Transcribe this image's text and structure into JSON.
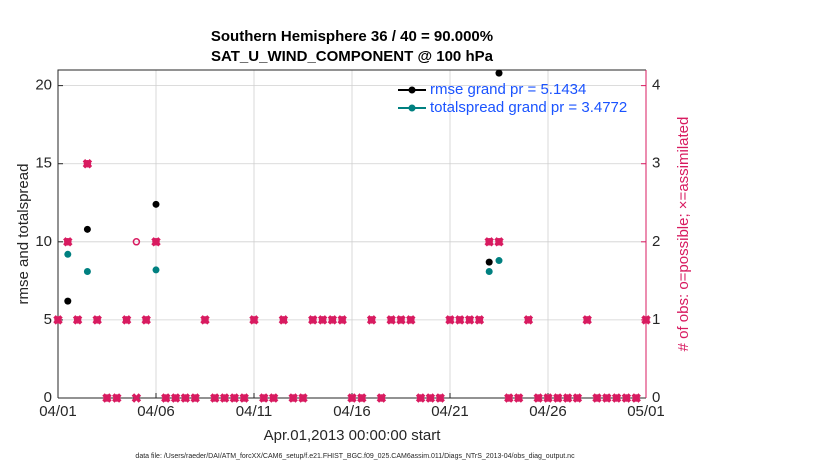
{
  "chart_data": {
    "type": "scatter",
    "title": [
      "Southern Hemisphere 36 / 40 = 90.000%",
      "SAT_U_WIND_COMPONENT @ 100 hPa"
    ],
    "xlabel": "Apr.01,2013 00:00:00 start",
    "ylabel": "rmse and totalspread",
    "y2label": "# of obs: o=possible; ×=assimilated",
    "footnote": "data file: /Users/raeder/DAI/ATM_forcXX/CAM6_setup/f.e21.FHIST_BGC.f09_025.CAM6assim.011/Diags_NTrS_2013-04/obs_diag_output.nc",
    "x": [
      0,
      0.5,
      1,
      1.5,
      2,
      2.5,
      3,
      3.5,
      4,
      4.5,
      5,
      5.5,
      6,
      6.5,
      7,
      7.5,
      8,
      8.5,
      9,
      9.5,
      10,
      10.5,
      11,
      11.5,
      12,
      12.5,
      13,
      13.5,
      14,
      14.5,
      15,
      15.5,
      16,
      16.5,
      17,
      17.5,
      18,
      18.5,
      19,
      19.5,
      20,
      20.5,
      21,
      21.5,
      22,
      22.5,
      23,
      23.5,
      24,
      24.5,
      25,
      25.5,
      26,
      26.5,
      27,
      27.5,
      28,
      28.5,
      29,
      29.5,
      30
    ],
    "xlim": [
      0,
      30
    ],
    "xticks": [
      {
        "value": 0,
        "label": "04/01"
      },
      {
        "value": 5,
        "label": "04/06"
      },
      {
        "value": 10,
        "label": "04/11"
      },
      {
        "value": 15,
        "label": "04/16"
      },
      {
        "value": 20,
        "label": "04/21"
      },
      {
        "value": 25,
        "label": "04/26"
      },
      {
        "value": 30,
        "label": "05/01"
      }
    ],
    "ylim": [
      0,
      21
    ],
    "yticks": [
      0,
      5,
      10,
      15,
      20
    ],
    "y2lim": [
      0,
      4.2
    ],
    "y2ticks": [
      0,
      1,
      2,
      3,
      4
    ],
    "grid": true,
    "legend": "upper right",
    "series": [
      {
        "name": "rmse grand pr = 5.1434",
        "color": "#000000",
        "marker": "dot",
        "values": [
          null,
          6.2,
          null,
          10.8,
          null,
          null,
          null,
          null,
          null,
          null,
          12.4,
          null,
          null,
          null,
          null,
          null,
          null,
          null,
          null,
          null,
          null,
          null,
          null,
          null,
          null,
          null,
          null,
          null,
          null,
          null,
          null,
          null,
          null,
          null,
          null,
          null,
          null,
          null,
          null,
          null,
          null,
          null,
          null,
          null,
          8.7,
          20.8,
          null,
          null,
          null,
          null,
          null,
          null,
          null,
          null,
          null,
          null,
          null,
          null,
          null,
          null,
          null
        ]
      },
      {
        "name": "totalspread grand pr = 3.4772",
        "color": "#008080",
        "marker": "dot",
        "values": [
          null,
          9.2,
          null,
          8.1,
          null,
          null,
          null,
          null,
          null,
          null,
          8.2,
          null,
          null,
          null,
          null,
          null,
          null,
          null,
          null,
          null,
          null,
          null,
          null,
          null,
          null,
          null,
          null,
          null,
          null,
          null,
          null,
          null,
          null,
          null,
          null,
          null,
          null,
          null,
          null,
          null,
          null,
          null,
          null,
          null,
          8.1,
          8.8,
          null,
          null,
          null,
          null,
          null,
          null,
          null,
          null,
          null,
          null,
          null,
          null,
          null,
          null,
          null
        ]
      },
      {
        "color": "#d81b60",
        "marker": "o",
        "axis": "y2",
        "values": [
          1,
          2,
          1,
          3,
          1,
          0,
          0,
          1,
          2,
          1,
          2,
          0,
          0,
          0,
          0,
          1,
          0,
          0,
          0,
          0,
          1,
          0,
          0,
          1,
          0,
          0,
          1,
          1,
          1,
          1,
          0,
          0,
          1,
          0,
          1,
          1,
          1,
          0,
          0,
          0,
          1,
          1,
          1,
          1,
          2,
          2,
          0,
          0,
          1,
          0,
          0,
          0,
          0,
          0,
          1,
          0,
          0,
          0,
          0,
          0,
          1
        ]
      },
      {
        "color": "#d81b60",
        "marker": "x",
        "axis": "y2",
        "values": [
          1,
          2,
          1,
          3,
          1,
          0,
          0,
          1,
          0,
          1,
          2,
          0,
          0,
          0,
          0,
          1,
          0,
          0,
          0,
          0,
          1,
          0,
          0,
          1,
          0,
          0,
          1,
          1,
          1,
          1,
          0,
          0,
          1,
          0,
          1,
          1,
          1,
          0,
          0,
          0,
          1,
          1,
          1,
          1,
          2,
          2,
          0,
          0,
          1,
          0,
          0,
          0,
          0,
          0,
          1,
          0,
          0,
          0,
          0,
          0,
          1
        ]
      }
    ]
  }
}
